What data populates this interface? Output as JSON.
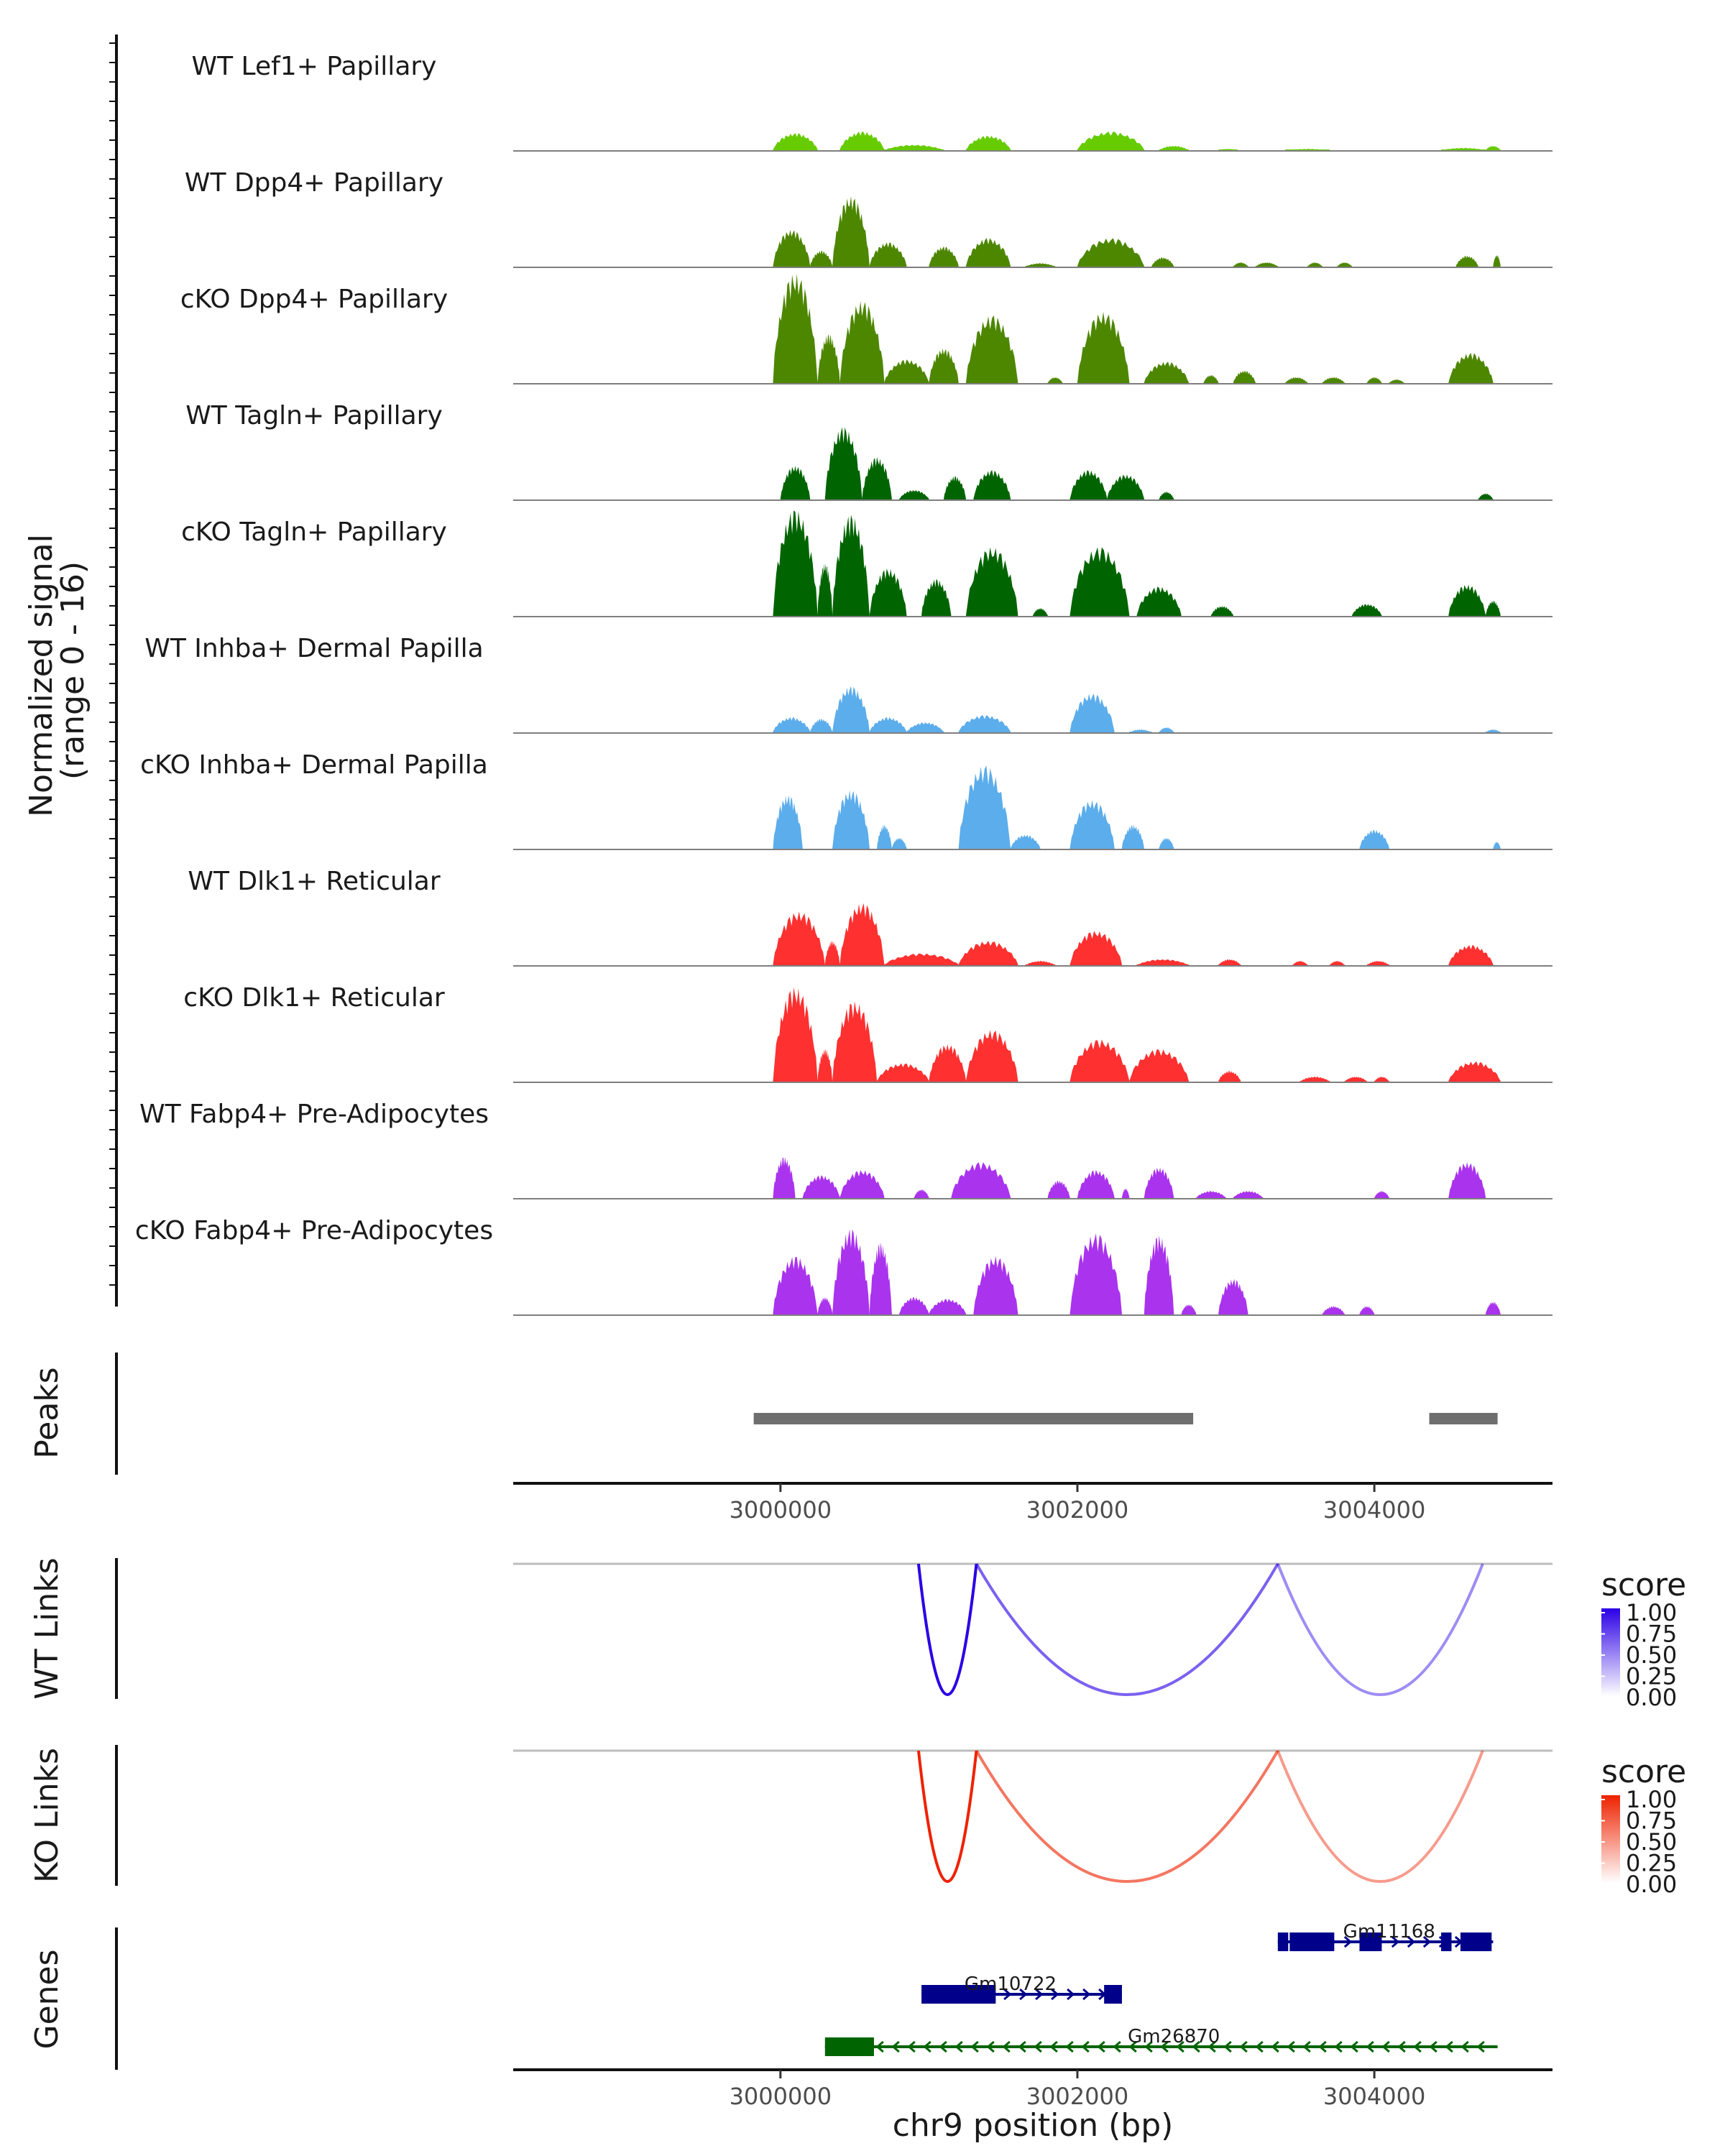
{
  "chart_data": {
    "type": "genome-coverage",
    "region": {
      "chrom": "chr9",
      "start": 2998200,
      "end": 3005200
    },
    "signal_panel": {
      "ylabel": "Normalized signal\n(range 0 - 16)",
      "ylabel_lines": [
        "Normalized signal",
        "(range 0 - 16)"
      ],
      "range": [
        0,
        16
      ],
      "tracks": [
        {
          "label": "WT Lef1+ Papillary",
          "color": "#66cc00",
          "max_fraction": 0.44,
          "peaks": [
            [
              2999950,
              3000250,
              0.35
            ],
            [
              3000400,
              3000700,
              0.38
            ],
            [
              3000700,
              3001100,
              0.12
            ],
            [
              3001250,
              3001550,
              0.3
            ],
            [
              3002000,
              3002450,
              0.38
            ],
            [
              3002550,
              3002750,
              0.1
            ],
            [
              3002950,
              3003080,
              0.04
            ],
            [
              3003400,
              3003700,
              0.04
            ],
            [
              3004450,
              3004750,
              0.06
            ],
            [
              3004750,
              3004850,
              0.1
            ]
          ]
        },
        {
          "label": "WT Dpp4+ Papillary",
          "color": "#4d8700",
          "max_fraction": 0.72,
          "peaks": [
            [
              2999950,
              3000200,
              0.45
            ],
            [
              3000200,
              3000350,
              0.2
            ],
            [
              3000350,
              3000600,
              0.85
            ],
            [
              3000600,
              3000850,
              0.3
            ],
            [
              3001000,
              3001200,
              0.25
            ],
            [
              3001250,
              3001550,
              0.35
            ],
            [
              3001650,
              3001850,
              0.05
            ],
            [
              3002000,
              3002450,
              0.35
            ],
            [
              3002500,
              3002650,
              0.12
            ],
            [
              3003050,
              3003150,
              0.06
            ],
            [
              3003200,
              3003350,
              0.06
            ],
            [
              3003550,
              3003650,
              0.06
            ],
            [
              3003750,
              3003850,
              0.06
            ],
            [
              3004550,
              3004700,
              0.14
            ],
            [
              3004800,
              3004850,
              0.15
            ]
          ]
        },
        {
          "label": "cKO Dpp4+ Papillary",
          "color": "#4d8700",
          "max_fraction": 0.95,
          "peaks": [
            [
              2999950,
              3000250,
              1.0
            ],
            [
              3000250,
              3000400,
              0.45
            ],
            [
              3000400,
              3000700,
              0.75
            ],
            [
              3000700,
              3001000,
              0.22
            ],
            [
              3001000,
              3001200,
              0.32
            ],
            [
              3001250,
              3001600,
              0.62
            ],
            [
              3001800,
              3001900,
              0.06
            ],
            [
              3002000,
              3002350,
              0.65
            ],
            [
              3002450,
              3002750,
              0.2
            ],
            [
              3002850,
              3002950,
              0.08
            ],
            [
              3003050,
              3003200,
              0.12
            ],
            [
              3003400,
              3003550,
              0.06
            ],
            [
              3003650,
              3003800,
              0.06
            ],
            [
              3003950,
              3004050,
              0.06
            ],
            [
              3004100,
              3004200,
              0.04
            ],
            [
              3004500,
              3004800,
              0.28
            ]
          ]
        },
        {
          "label": "WT Tagln+ Papillary",
          "color": "#006400",
          "max_fraction": 0.74,
          "peaks": [
            [
              3000000,
              3000200,
              0.4
            ],
            [
              3000300,
              3000550,
              0.85
            ],
            [
              3000550,
              3000750,
              0.5
            ],
            [
              3000800,
              3001000,
              0.12
            ],
            [
              3001100,
              3001250,
              0.28
            ],
            [
              3001300,
              3001550,
              0.35
            ],
            [
              3001950,
              3002200,
              0.35
            ],
            [
              3002200,
              3002450,
              0.3
            ],
            [
              3002550,
              3002650,
              0.1
            ],
            [
              3004700,
              3004800,
              0.08
            ]
          ]
        },
        {
          "label": "cKO Tagln+ Papillary",
          "color": "#006400",
          "max_fraction": 0.92,
          "peaks": [
            [
              2999950,
              3000250,
              1.0
            ],
            [
              3000250,
              3000350,
              0.5
            ],
            [
              3000350,
              3000600,
              0.95
            ],
            [
              3000600,
              3000850,
              0.45
            ],
            [
              3000950,
              3001150,
              0.35
            ],
            [
              3001250,
              3001600,
              0.65
            ],
            [
              3001700,
              3001800,
              0.08
            ],
            [
              3001950,
              3002350,
              0.65
            ],
            [
              3002400,
              3002700,
              0.28
            ],
            [
              3002900,
              3003050,
              0.1
            ],
            [
              3003850,
              3004050,
              0.12
            ],
            [
              3004500,
              3004750,
              0.3
            ],
            [
              3004750,
              3004850,
              0.15
            ]
          ]
        },
        {
          "label": "WT Inhba+ Dermal Papilla",
          "color": "#5cadeb",
          "max_fraction": 0.62,
          "peaks": [
            [
              2999950,
              3000200,
              0.22
            ],
            [
              3000200,
              3000350,
              0.2
            ],
            [
              3000350,
              3000600,
              0.65
            ],
            [
              3000600,
              3000850,
              0.22
            ],
            [
              3000850,
              3001100,
              0.15
            ],
            [
              3001200,
              3001550,
              0.25
            ],
            [
              3001950,
              3002250,
              0.55
            ],
            [
              3002350,
              3002500,
              0.05
            ],
            [
              3002550,
              3002650,
              0.08
            ],
            [
              3004750,
              3004850,
              0.05
            ]
          ]
        },
        {
          "label": "cKO Inhba+ Dermal Papilla",
          "color": "#5cadeb",
          "max_fraction": 0.85,
          "peaks": [
            [
              2999950,
              3000150,
              0.55
            ],
            [
              3000350,
              3000600,
              0.6
            ],
            [
              3000650,
              3000750,
              0.25
            ],
            [
              3000750,
              3000850,
              0.12
            ],
            [
              3001200,
              3001550,
              0.85
            ],
            [
              3001550,
              3001750,
              0.15
            ],
            [
              3001950,
              3002250,
              0.5
            ],
            [
              3002300,
              3002450,
              0.25
            ],
            [
              3002550,
              3002650,
              0.12
            ],
            [
              3003900,
              3004100,
              0.2
            ],
            [
              3004800,
              3004850,
              0.08
            ]
          ]
        },
        {
          "label": "WT Dlk1+ Reticular",
          "color": "#ff3030",
          "max_fraction": 0.72,
          "peaks": [
            [
              2999950,
              3000300,
              0.65
            ],
            [
              3000300,
              3000400,
              0.3
            ],
            [
              3000400,
              3000700,
              0.75
            ],
            [
              3000700,
              3001200,
              0.15
            ],
            [
              3001200,
              3001600,
              0.3
            ],
            [
              3001650,
              3001850,
              0.06
            ],
            [
              3001950,
              3002300,
              0.42
            ],
            [
              3002400,
              3002750,
              0.08
            ],
            [
              3002950,
              3003100,
              0.08
            ],
            [
              3003450,
              3003550,
              0.06
            ],
            [
              3003700,
              3003800,
              0.06
            ],
            [
              3003950,
              3004100,
              0.06
            ],
            [
              3004500,
              3004800,
              0.25
            ]
          ]
        },
        {
          "label": "cKO Dlk1+ Reticular",
          "color": "#ff3030",
          "max_fraction": 0.82,
          "peaks": [
            [
              2999950,
              3000250,
              1.0
            ],
            [
              3000250,
              3000350,
              0.35
            ],
            [
              3000350,
              3000650,
              0.85
            ],
            [
              3000650,
              3001000,
              0.2
            ],
            [
              3001000,
              3001250,
              0.4
            ],
            [
              3001250,
              3001600,
              0.55
            ],
            [
              3001950,
              3002350,
              0.45
            ],
            [
              3002350,
              3002750,
              0.35
            ],
            [
              3002950,
              3003100,
              0.12
            ],
            [
              3003500,
              3003700,
              0.06
            ],
            [
              3003800,
              3003950,
              0.06
            ],
            [
              3004000,
              3004100,
              0.06
            ],
            [
              3004500,
              3004850,
              0.22
            ]
          ]
        },
        {
          "label": "WT Fabp4+ Pre-Adipocytes",
          "color": "#aa33ee",
          "max_fraction": 0.45,
          "peaks": [
            [
              2999950,
              3000100,
              0.8
            ],
            [
              3000150,
              3000400,
              0.45
            ],
            [
              3000400,
              3000700,
              0.55
            ],
            [
              3000900,
              3001000,
              0.18
            ],
            [
              3001150,
              3001550,
              0.7
            ],
            [
              3001800,
              3001950,
              0.35
            ],
            [
              3002000,
              3002250,
              0.55
            ],
            [
              3002300,
              3002350,
              0.2
            ],
            [
              3002450,
              3002650,
              0.6
            ],
            [
              3002800,
              3003000,
              0.15
            ],
            [
              3003050,
              3003250,
              0.15
            ],
            [
              3004000,
              3004100,
              0.15
            ],
            [
              3004500,
              3004750,
              0.7
            ]
          ]
        },
        {
          "label": "cKO Fabp4+ Pre-Adipocytes",
          "color": "#aa33ee",
          "max_fraction": 0.78,
          "peaks": [
            [
              2999950,
              3000250,
              0.65
            ],
            [
              3000250,
              3000350,
              0.2
            ],
            [
              3000350,
              3000600,
              0.95
            ],
            [
              3000600,
              3000750,
              0.8
            ],
            [
              3000800,
              3001000,
              0.2
            ],
            [
              3001000,
              3001250,
              0.18
            ],
            [
              3001300,
              3001600,
              0.65
            ],
            [
              3001950,
              3002300,
              0.9
            ],
            [
              3002450,
              3002650,
              0.88
            ],
            [
              3002700,
              3002800,
              0.12
            ],
            [
              3002950,
              3003150,
              0.4
            ],
            [
              3003650,
              3003800,
              0.1
            ],
            [
              3003900,
              3004000,
              0.1
            ],
            [
              3004750,
              3004850,
              0.15
            ]
          ]
        }
      ]
    },
    "peaks_panel": {
      "ylabel": "Peaks",
      "color": "#6e6e6e",
      "intervals": [
        [
          2999820,
          3002780
        ],
        [
          3004370,
          3004830
        ]
      ]
    },
    "x_axis": {
      "ticks": [
        3000000,
        3002000,
        3004000
      ],
      "tick_labels": [
        "3000000",
        "3002000",
        "3004000"
      ],
      "title": "chr9 position (bp)"
    },
    "links_panels": [
      {
        "ylabel": "WT Links",
        "legend_title": "score",
        "gradient": [
          "#ffffff",
          "#2b00e6"
        ],
        "legend_ticks": [
          "1.00",
          "0.75",
          "0.50",
          "0.25",
          "0.00"
        ],
        "links": [
          {
            "start": 3000930,
            "end": 3001320,
            "score": 1.0,
            "depth": 1.0
          },
          {
            "start": 3001320,
            "end": 3003350,
            "score": 0.55,
            "depth": 1.0
          },
          {
            "start": 3003350,
            "end": 3004730,
            "score": 0.35,
            "depth": 1.0
          }
        ]
      },
      {
        "ylabel": "KO Links",
        "legend_title": "score",
        "gradient": [
          "#ffffff",
          "#ee2200"
        ],
        "legend_ticks": [
          "1.00",
          "0.75",
          "0.50",
          "0.25",
          "0.00"
        ],
        "links": [
          {
            "start": 3000930,
            "end": 3001320,
            "score": 1.0,
            "depth": 1.0
          },
          {
            "start": 3001320,
            "end": 3003350,
            "score": 0.55,
            "depth": 1.0
          },
          {
            "start": 3003350,
            "end": 3004730,
            "score": 0.35,
            "depth": 1.0
          }
        ]
      }
    ],
    "genes_panel": {
      "ylabel": "Genes",
      "genes": [
        {
          "name": "Gm11168",
          "start": 3003350,
          "end": 3004800,
          "strand": "+",
          "color": "#00008b",
          "row": 0,
          "exons": [
            [
              3003350,
              3003420
            ],
            [
              3003430,
              3003730
            ],
            [
              3003900,
              3004050
            ],
            [
              3004450,
              3004520
            ],
            [
              3004580,
              3004790
            ]
          ],
          "label_at": 3004100
        },
        {
          "name": "Gm10722",
          "start": 3000950,
          "end": 3002300,
          "strand": "+",
          "color": "#00008b",
          "row": 1,
          "exons": [
            [
              3000950,
              3001450
            ],
            [
              3002180,
              3002300
            ]
          ],
          "label_at": 3001550
        },
        {
          "name": "Gm26870",
          "start": 3000300,
          "end": 3004830,
          "strand": "-",
          "color": "#006400",
          "row": 2,
          "exons": [
            [
              3000300,
              3000630
            ]
          ],
          "label_at": 3002650
        }
      ]
    }
  }
}
